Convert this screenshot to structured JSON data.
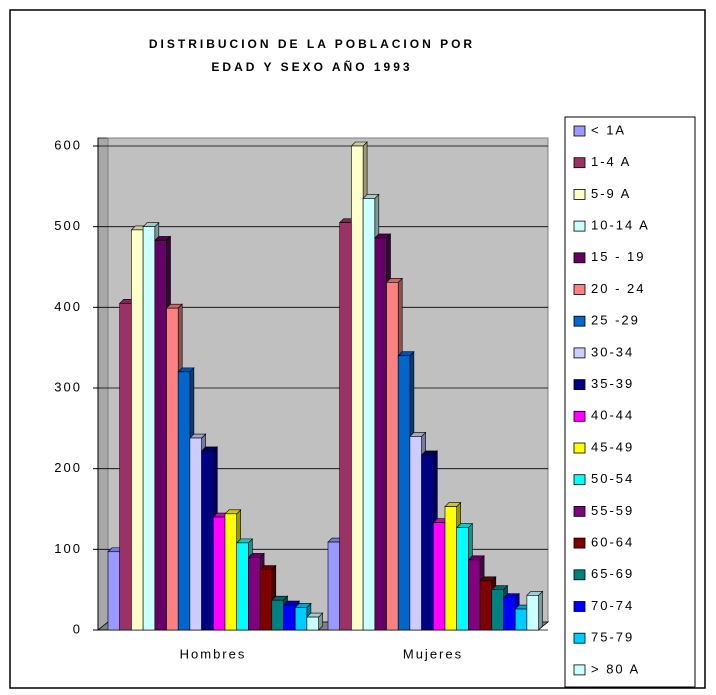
{
  "chart_data": {
    "type": "bar3d",
    "title": [
      "DISTRIBUCION DE LA POBLACION POR",
      "EDAD Y SEXO AÑO 1993"
    ],
    "categories": [
      "Hombres",
      "Mujeres"
    ],
    "ylim": [
      0,
      600
    ],
    "yticks": [
      0,
      100,
      200,
      300,
      400,
      500,
      600
    ],
    "grid": true,
    "series": [
      {
        "name": "< 1A",
        "color": "#9999ff",
        "values": [
          97,
          109
        ]
      },
      {
        "name": "1-4 A",
        "color": "#993366",
        "values": [
          405,
          505
        ]
      },
      {
        "name": "5-9 A",
        "color": "#ffffcc",
        "values": [
          496,
          600
        ]
      },
      {
        "name": "10-14 A",
        "color": "#ccffff",
        "values": [
          500,
          535
        ]
      },
      {
        "name": "15 - 19",
        "color": "#660066",
        "values": [
          483,
          486
        ]
      },
      {
        "name": "20 - 24",
        "color": "#ff8080",
        "values": [
          399,
          431
        ]
      },
      {
        "name": "25 -29",
        "color": "#0066cc",
        "values": [
          320,
          340
        ]
      },
      {
        "name": "30-34",
        "color": "#ccccff",
        "values": [
          238,
          240
        ]
      },
      {
        "name": "35-39",
        "color": "#000080",
        "values": [
          222,
          217
        ]
      },
      {
        "name": "40-44",
        "color": "#ff00ff",
        "values": [
          140,
          133
        ]
      },
      {
        "name": "45-49",
        "color": "#ffff00",
        "values": [
          144,
          153
        ]
      },
      {
        "name": "50-54",
        "color": "#00ffff",
        "values": [
          108,
          127
        ]
      },
      {
        "name": "55-59",
        "color": "#800080",
        "values": [
          90,
          87
        ]
      },
      {
        "name": "60-64",
        "color": "#800000",
        "values": [
          75,
          61
        ]
      },
      {
        "name": "65-69",
        "color": "#008080",
        "values": [
          37,
          50
        ]
      },
      {
        "name": "70-74",
        "color": "#0000ff",
        "values": [
          31,
          40
        ]
      },
      {
        "name": "75-79",
        "color": "#00ccff",
        "values": [
          28,
          26
        ]
      },
      {
        "name": "> 80 A",
        "color": "#ccffff",
        "values": [
          16,
          43
        ]
      }
    ]
  }
}
